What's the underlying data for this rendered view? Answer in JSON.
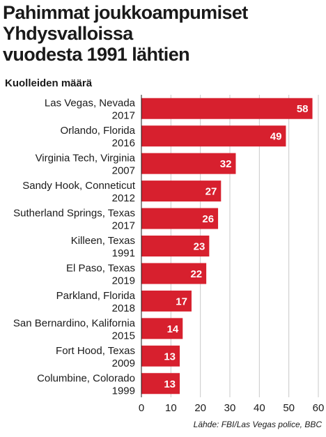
{
  "chart_data": {
    "type": "bar",
    "orientation": "horizontal",
    "title_lines": [
      "Pahimmat joukkoampumiset",
      "Yhdysvalloissa",
      "vuodesta 1991 lähtien"
    ],
    "subtitle": "Kuolleiden määrä",
    "categories": [
      [
        "Las Vegas, Nevada",
        "2017"
      ],
      [
        "Orlando, Florida",
        "2016"
      ],
      [
        "Virginia Tech, Virginia",
        "2007"
      ],
      [
        "Sandy Hook, Conneticut",
        "2012"
      ],
      [
        "Sutherland Springs, Texas",
        "2017"
      ],
      [
        "Killeen, Texas",
        "1991"
      ],
      [
        "El Paso, Texas",
        "2019"
      ],
      [
        "Parkland, Florida",
        "2018"
      ],
      [
        "San Bernardino, Kalifornia",
        "2015"
      ],
      [
        "Fort Hood, Texas",
        "2009"
      ],
      [
        "Columbine, Colorado",
        "1999"
      ]
    ],
    "values": [
      58,
      49,
      32,
      27,
      26,
      23,
      22,
      17,
      14,
      13,
      13
    ],
    "xlim": [
      0,
      60
    ],
    "xticks": [
      0,
      10,
      20,
      30,
      40,
      50,
      60
    ],
    "grid": "vertical",
    "bar_color": "#d7202e",
    "grid_color": "#c8c8c8",
    "source": "Lähde: FBI/Las Vegas police, BBC"
  }
}
